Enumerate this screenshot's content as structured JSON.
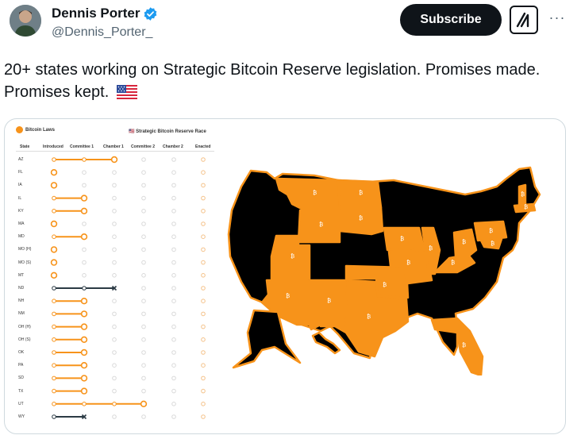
{
  "tweet": {
    "author_name": "Dennis Porter",
    "handle": "@Dennis_Porter_",
    "subscribe_label": "Subscribe",
    "text": "20+ states working on Strategic Bitcoin Reserve legislation. Promises made. Promises kept.",
    "flag_icon": "us-flag-icon"
  },
  "tracker": {
    "brand": "Bitcoin Laws",
    "race_title": "🇺🇸 Strategic Bitcoin Reserve Race",
    "columns": [
      "State",
      "Introduced",
      "Committee 1",
      "Chamber 1",
      "Committee 2",
      "Chamber 2",
      "Enacted"
    ],
    "rows": [
      {
        "state": "AZ",
        "stage": 3,
        "status": "active"
      },
      {
        "state": "FL",
        "stage": 1,
        "status": "active"
      },
      {
        "state": "IA",
        "stage": 1,
        "status": "active"
      },
      {
        "state": "IL",
        "stage": 2,
        "status": "active"
      },
      {
        "state": "KY",
        "stage": 2,
        "status": "active"
      },
      {
        "state": "MA",
        "stage": 1,
        "status": "active"
      },
      {
        "state": "MD",
        "stage": 2,
        "status": "active"
      },
      {
        "state": "MO (H)",
        "stage": 1,
        "status": "active"
      },
      {
        "state": "MO (S)",
        "stage": 1,
        "status": "active"
      },
      {
        "state": "MT",
        "stage": 1,
        "status": "active"
      },
      {
        "state": "ND",
        "stage": 3,
        "status": "failed"
      },
      {
        "state": "NH",
        "stage": 2,
        "status": "active"
      },
      {
        "state": "NM",
        "stage": 2,
        "status": "active"
      },
      {
        "state": "OH (H)",
        "stage": 2,
        "status": "active"
      },
      {
        "state": "OH (S)",
        "stage": 2,
        "status": "active"
      },
      {
        "state": "OK",
        "stage": 2,
        "status": "active"
      },
      {
        "state": "PA",
        "stage": 2,
        "status": "active"
      },
      {
        "state": "SD",
        "stage": 2,
        "status": "active"
      },
      {
        "state": "TX",
        "stage": 2,
        "status": "active"
      },
      {
        "state": "UT",
        "stage": 4,
        "status": "active"
      },
      {
        "state": "WY",
        "stage": 2,
        "status": "failed"
      }
    ],
    "colors": {
      "active": "#f7931a",
      "failed": "#2b3a44",
      "pending": "#d9d9d9"
    }
  },
  "map": {
    "highlight_color": "#f7931a",
    "base_color": "#000000",
    "marker_glyph": "₿"
  }
}
